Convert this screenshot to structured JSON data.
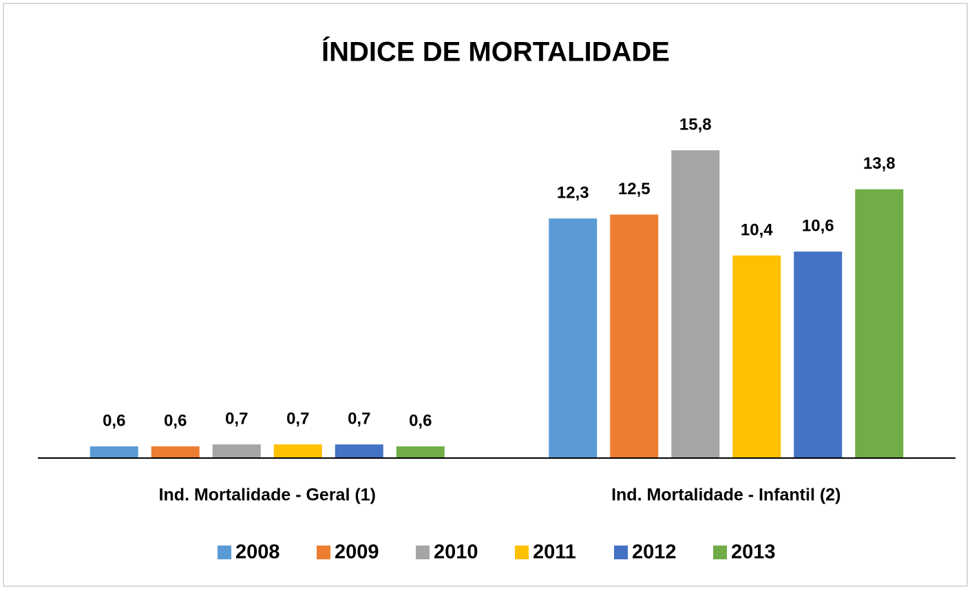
{
  "chart_data": {
    "type": "bar",
    "title": "ÍNDICE DE MORTALIDADE",
    "categories": [
      "Ind. Mortalidade - Geral (1)",
      "Ind. Mortalidade - Infantil (2)"
    ],
    "ylim": [
      0,
      18
    ],
    "legend": "bottom",
    "series": [
      {
        "name": "2008",
        "color": "#5b9bd5",
        "values": [
          0.6,
          12.3
        ],
        "value_labels": [
          "0,6",
          "12,3"
        ]
      },
      {
        "name": "2009",
        "color": "#ed7d31",
        "values": [
          0.6,
          12.5
        ],
        "value_labels": [
          "0,6",
          "12,5"
        ]
      },
      {
        "name": "2010",
        "color": "#a5a5a5",
        "values": [
          0.7,
          15.8
        ],
        "value_labels": [
          "0,7",
          "15,8"
        ]
      },
      {
        "name": "2011",
        "color": "#ffc000",
        "values": [
          0.7,
          10.4
        ],
        "value_labels": [
          "0,7",
          "10,4"
        ]
      },
      {
        "name": "2012",
        "color": "#4472c4",
        "values": [
          0.7,
          10.6
        ],
        "value_labels": [
          "0,7",
          "10,6"
        ]
      },
      {
        "name": "2013",
        "color": "#70ad47",
        "values": [
          0.6,
          13.8
        ],
        "value_labels": [
          "0,6",
          "13,8"
        ]
      }
    ]
  }
}
